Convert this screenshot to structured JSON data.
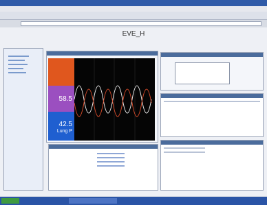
{
  "window": {
    "title_text": "EVE_H"
  },
  "monitor": {
    "tiles": [
      {
        "value": "58.5"
      },
      {
        "value": "42.5",
        "label": "Lung P"
      }
    ]
  }
}
